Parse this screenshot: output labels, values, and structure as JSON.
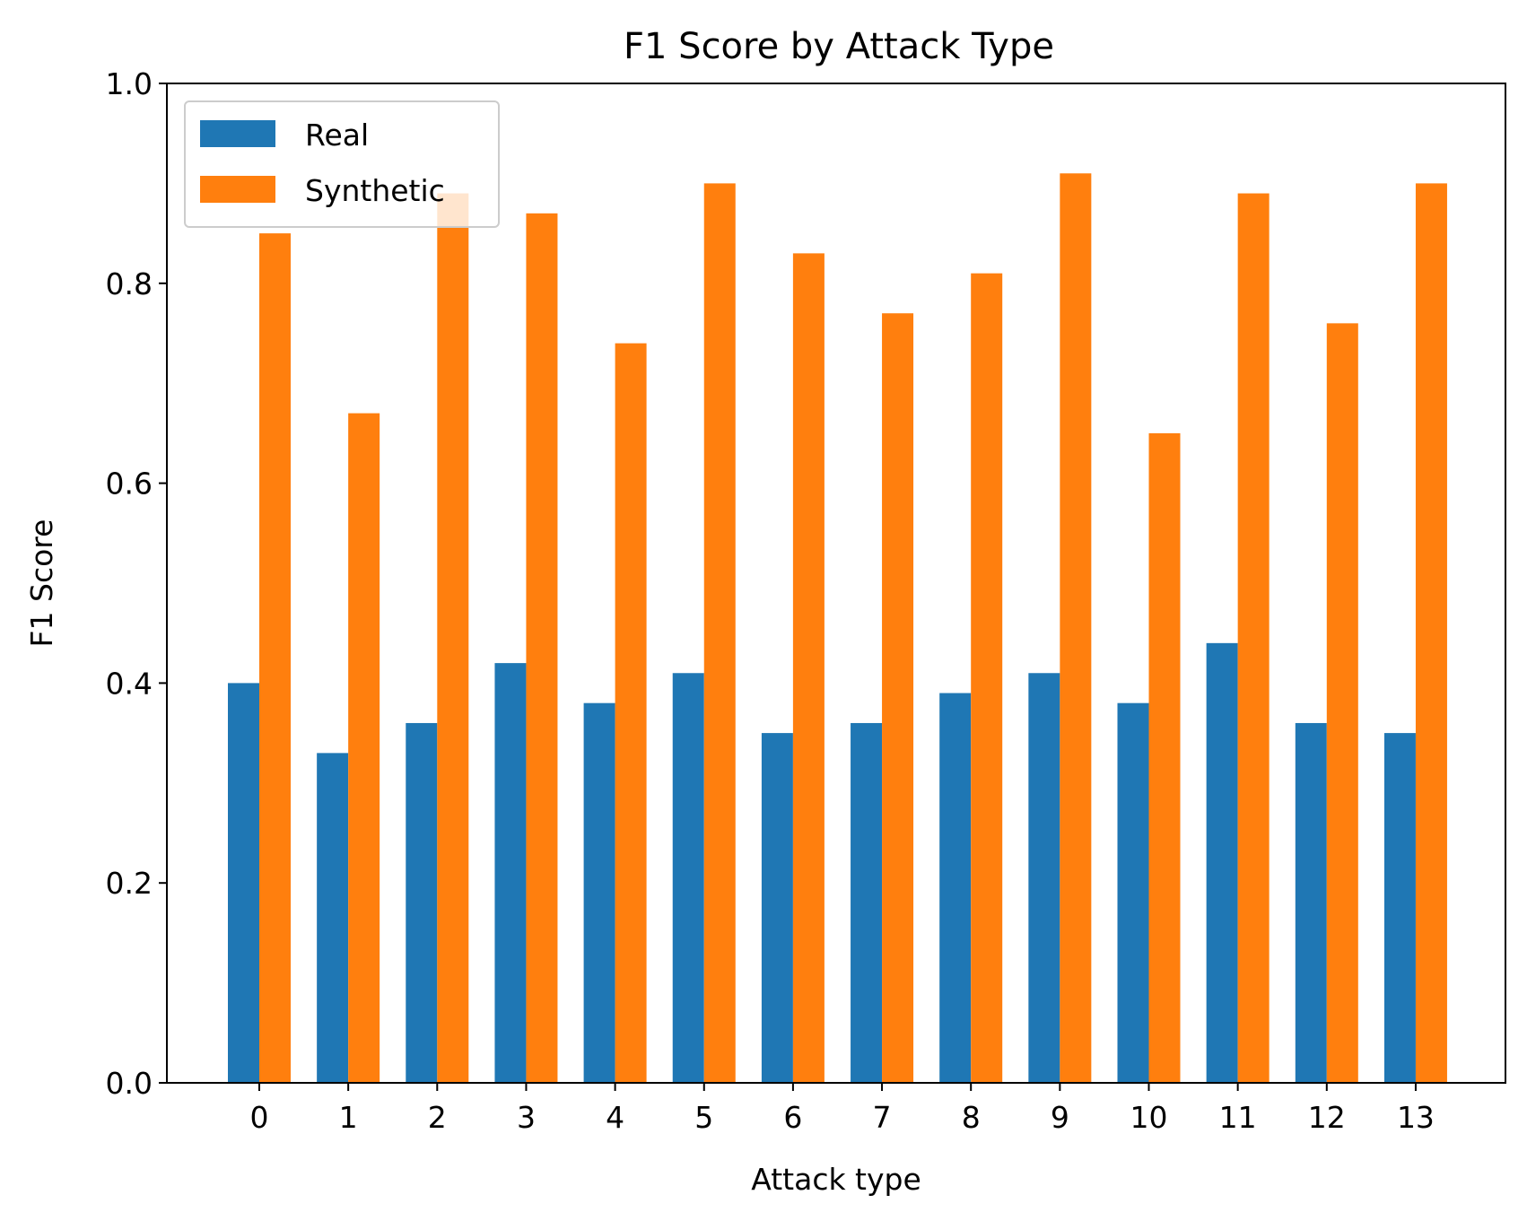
{
  "chart_data": {
    "type": "bar",
    "title": "F1 Score by Attack Type",
    "xlabel": "Attack type",
    "ylabel": "F1 Score",
    "categories": [
      "0",
      "1",
      "2",
      "3",
      "4",
      "5",
      "6",
      "7",
      "8",
      "9",
      "10",
      "11",
      "12",
      "13"
    ],
    "series": [
      {
        "name": "Real",
        "color": "#1f77b4",
        "values": [
          0.4,
          0.33,
          0.36,
          0.42,
          0.38,
          0.41,
          0.35,
          0.36,
          0.39,
          0.41,
          0.38,
          0.44,
          0.36,
          0.35
        ]
      },
      {
        "name": "Synthetic",
        "color": "#ff7f0e",
        "values": [
          0.85,
          0.67,
          0.89,
          0.87,
          0.74,
          0.9,
          0.83,
          0.77,
          0.81,
          0.91,
          0.65,
          0.89,
          0.76,
          0.9
        ]
      }
    ],
    "ylim": [
      0,
      1.0
    ],
    "yticks": [
      "0.0",
      "0.2",
      "0.4",
      "0.6",
      "0.8",
      "1.0"
    ],
    "grid": false,
    "legend_position": "top-left"
  }
}
